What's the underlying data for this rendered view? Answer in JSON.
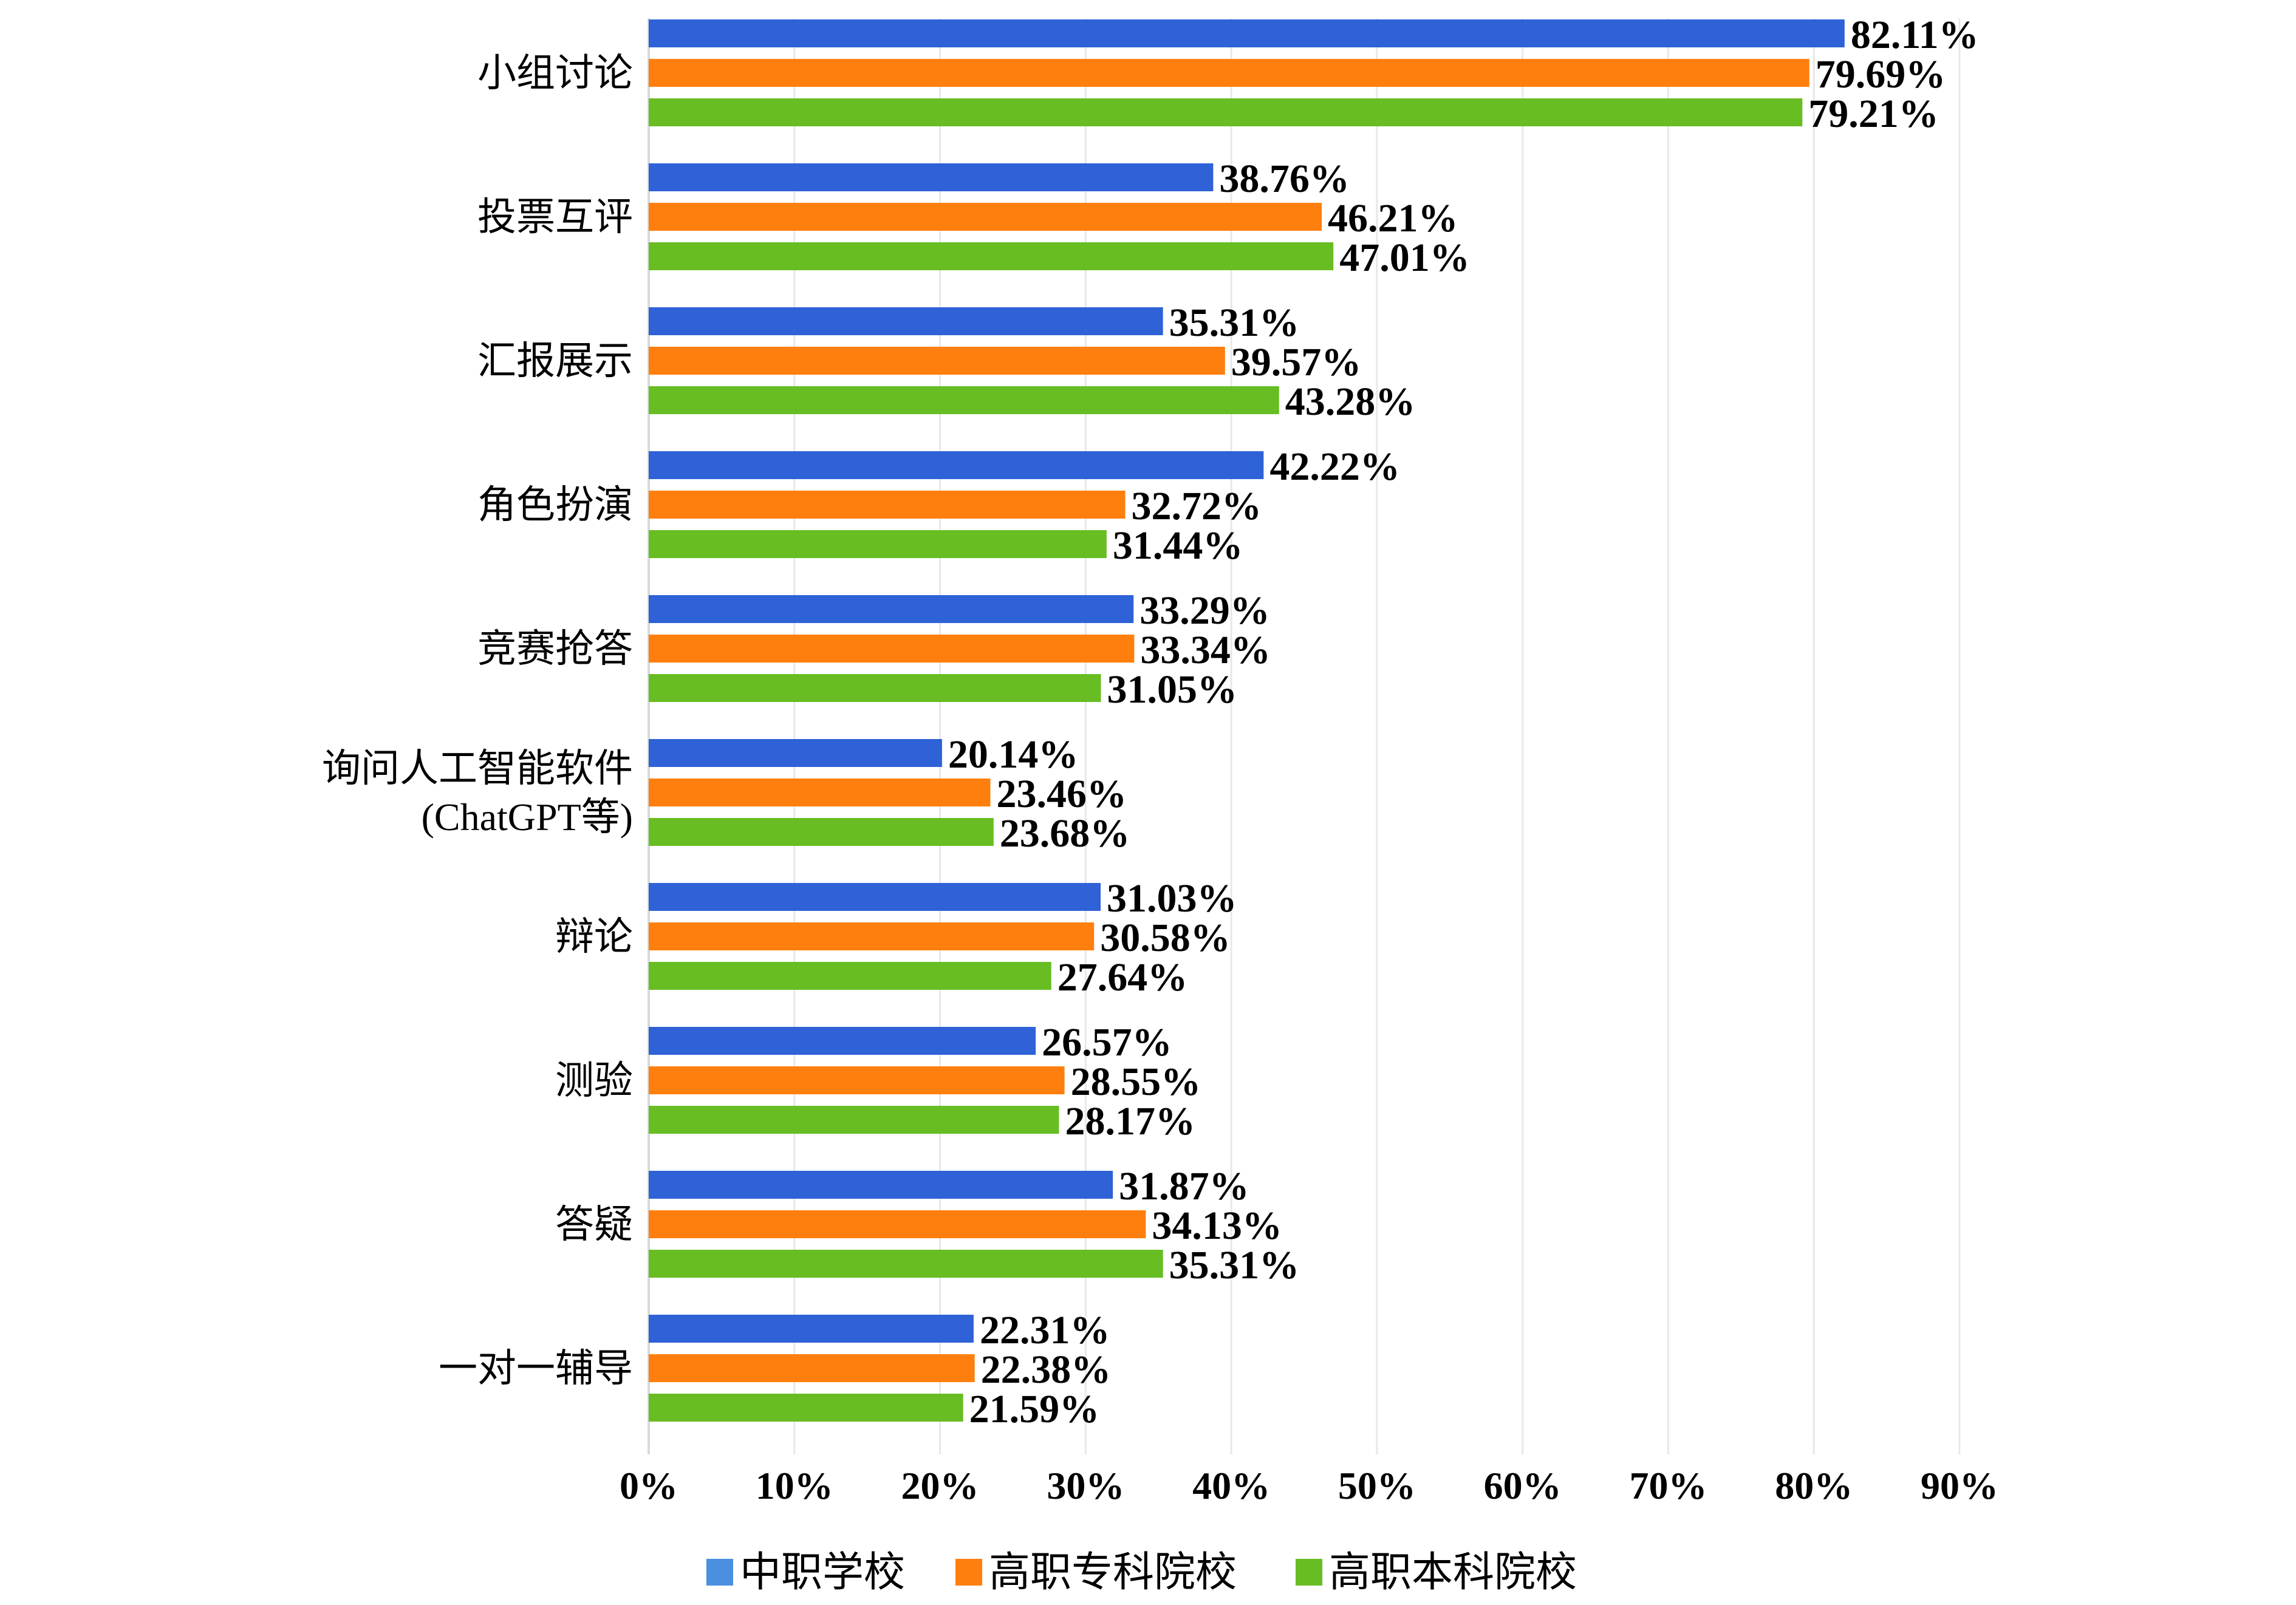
{
  "chart_data": {
    "type": "bar",
    "orientation": "horizontal",
    "categories": [
      [
        "小组讨论"
      ],
      [
        "投票互评"
      ],
      [
        "汇报展示"
      ],
      [
        "角色扮演"
      ],
      [
        "竞赛抢答"
      ],
      [
        "询问人工智能软件",
        "(ChatGPT等)"
      ],
      [
        "辩论"
      ],
      [
        "测验"
      ],
      [
        "答疑"
      ],
      [
        "一对一辅导"
      ]
    ],
    "series": [
      {
        "name": "中职学校",
        "color": "#2e62d6",
        "values": [
          82.11,
          38.76,
          35.31,
          42.22,
          33.29,
          20.14,
          31.03,
          26.57,
          31.87,
          22.31
        ],
        "labels": [
          "82.11%",
          "38.76%",
          "35.31%",
          "42.22%",
          "33.29%",
          "20.14%",
          "31.03%",
          "26.57%",
          "31.87%",
          "22.31%"
        ]
      },
      {
        "name": "高职专科院校",
        "color": "#ff7f0e",
        "values": [
          79.69,
          46.21,
          39.57,
          32.72,
          33.34,
          23.46,
          30.58,
          28.55,
          34.13,
          22.38
        ],
        "labels": [
          "79.69%",
          "46.21%",
          "39.57%",
          "32.72%",
          "33.34%",
          "23.46%",
          "30.58%",
          "28.55%",
          "34.13%",
          "22.38%"
        ]
      },
      {
        "name": "高职本科院校",
        "color": "#67bd22",
        "values": [
          79.21,
          47.01,
          43.28,
          31.44,
          31.05,
          23.68,
          27.64,
          28.17,
          35.31,
          21.59
        ],
        "labels": [
          "79.21%",
          "47.01%",
          "43.28%",
          "31.44%",
          "31.05%",
          "23.68%",
          "27.64%",
          "28.17%",
          "35.31%",
          "21.59%"
        ]
      }
    ],
    "x_ticks": [
      "0%",
      "10%",
      "20%",
      "30%",
      "40%",
      "50%",
      "60%",
      "70%",
      "80%",
      "90%"
    ],
    "xlim": [
      0,
      90
    ],
    "grid": true,
    "legend_position": "bottom",
    "legend_colors": [
      "#4a8fe0",
      "#ff7f0e",
      "#67bd22"
    ]
  }
}
